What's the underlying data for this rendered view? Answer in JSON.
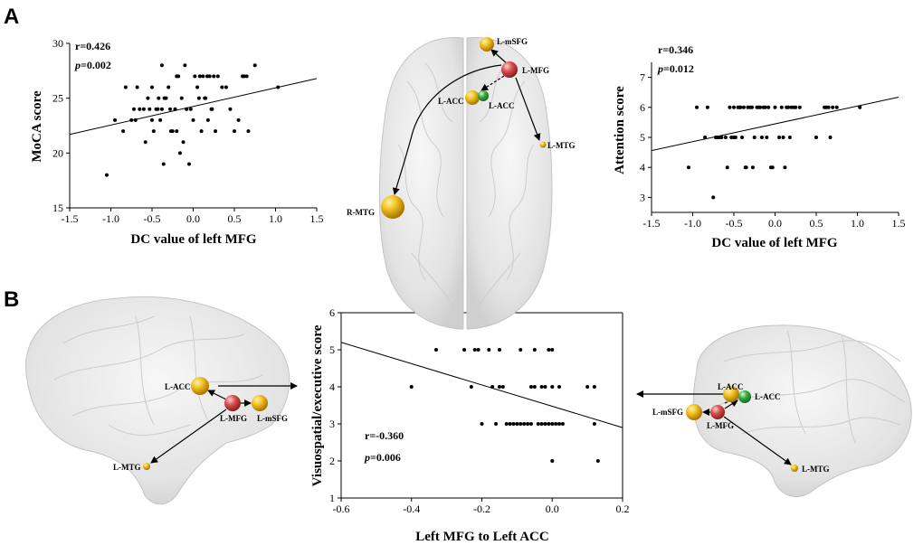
{
  "panels": {
    "a": "A",
    "b": "B"
  },
  "stats": [
    {
      "r": "r=0.426",
      "p_letter": "p",
      "p_value": "=0.002"
    },
    {
      "r": "r=0.346",
      "p_letter": "p",
      "p_value": "=0.012"
    },
    {
      "r": "r=-0.360",
      "p_letter": "p",
      "p_value": "=0.006"
    }
  ],
  "brain_labels": {
    "top": {
      "mSFG": "L-mSFG",
      "MFG": "L-MFG",
      "ACC1": "L-ACC",
      "ACC2": "L-ACC",
      "MTGr": "L-MTG",
      "RMTG": "R-MTG"
    },
    "left": {
      "ACC": "L-ACC",
      "MFG": "L-MFG",
      "mSFG": "L-mSFG",
      "MTG": "L-MTG"
    },
    "right": {
      "ACC1": "L-ACC",
      "ACC2": "L-ACC",
      "mSFG": "L-mSFG",
      "MFG": "L-MFG",
      "MTG": "L-MTG"
    }
  },
  "colors": {
    "gold": "#e8b00e",
    "red": "#d94c4c",
    "green": "#3cb043",
    "brain": "#e6e6e6"
  },
  "chart_data": [
    {
      "type": "scatter",
      "xlabel": "DC value of left MFG",
      "ylabel": "MoCA score",
      "xlim": [
        -1.5,
        1.5
      ],
      "ylim": [
        15,
        30
      ],
      "xticks": [
        "-1.5",
        "-1.0",
        "-0.5",
        "0.0",
        "0.5",
        "1.0",
        "1.5"
      ],
      "yticks": [
        "15",
        "20",
        "25",
        "30"
      ],
      "fit": {
        "x": [
          -1.5,
          1.5
        ],
        "y": [
          21.7,
          26.8
        ]
      },
      "points": [
        [
          -1.05,
          18
        ],
        [
          -0.95,
          23
        ],
        [
          -0.85,
          22
        ],
        [
          -0.82,
          26
        ],
        [
          -0.75,
          23
        ],
        [
          -0.72,
          24
        ],
        [
          -0.7,
          23
        ],
        [
          -0.68,
          26
        ],
        [
          -0.65,
          24
        ],
        [
          -0.6,
          24
        ],
        [
          -0.58,
          21
        ],
        [
          -0.55,
          25
        ],
        [
          -0.53,
          24
        ],
        [
          -0.5,
          23
        ],
        [
          -0.5,
          26
        ],
        [
          -0.48,
          22
        ],
        [
          -0.45,
          24
        ],
        [
          -0.43,
          24
        ],
        [
          -0.42,
          25
        ],
        [
          -0.4,
          23
        ],
        [
          -0.38,
          24
        ],
        [
          -0.38,
          28
        ],
        [
          -0.36,
          19
        ],
        [
          -0.35,
          25
        ],
        [
          -0.33,
          25
        ],
        [
          -0.3,
          26
        ],
        [
          -0.28,
          24
        ],
        [
          -0.27,
          22
        ],
        [
          -0.25,
          22
        ],
        [
          -0.22,
          24
        ],
        [
          -0.2,
          22
        ],
        [
          -0.2,
          27
        ],
        [
          -0.18,
          27
        ],
        [
          -0.16,
          20
        ],
        [
          -0.14,
          25
        ],
        [
          -0.12,
          21
        ],
        [
          -0.1,
          28
        ],
        [
          -0.08,
          24
        ],
        [
          -0.05,
          19
        ],
        [
          -0.03,
          24
        ],
        [
          0.0,
          23
        ],
        [
          0.02,
          27
        ],
        [
          0.05,
          26
        ],
        [
          0.07,
          25
        ],
        [
          0.08,
          27
        ],
        [
          0.1,
          22
        ],
        [
          0.12,
          27
        ],
        [
          0.14,
          25
        ],
        [
          0.15,
          25
        ],
        [
          0.17,
          27
        ],
        [
          0.18,
          23
        ],
        [
          0.2,
          27
        ],
        [
          0.22,
          24
        ],
        [
          0.23,
          24
        ],
        [
          0.25,
          27
        ],
        [
          0.27,
          22
        ],
        [
          0.3,
          27
        ],
        [
          0.35,
          26
        ],
        [
          0.4,
          26
        ],
        [
          0.45,
          24
        ],
        [
          0.5,
          22
        ],
        [
          0.55,
          23
        ],
        [
          0.6,
          27
        ],
        [
          0.62,
          27
        ],
        [
          0.65,
          27
        ],
        [
          0.67,
          22
        ],
        [
          0.75,
          28
        ],
        [
          1.03,
          26
        ]
      ]
    },
    {
      "type": "scatter",
      "xlabel": "DC value of left MFG",
      "ylabel": "Attention score",
      "xlim": [
        -1.5,
        1.5
      ],
      "ylim": [
        2.5,
        7.5
      ],
      "xticks": [
        "-1.5",
        "-1.0",
        "-0.5",
        "0.0",
        "0.5",
        "1.0",
        "1.5"
      ],
      "yticks": [
        "3",
        "4",
        "5",
        "6",
        "7"
      ],
      "fit": {
        "x": [
          -1.5,
          1.5
        ],
        "y": [
          4.56,
          6.34
        ]
      },
      "points": [
        [
          -1.05,
          4
        ],
        [
          -0.95,
          6
        ],
        [
          -0.85,
          5
        ],
        [
          -0.82,
          6
        ],
        [
          -0.75,
          3
        ],
        [
          -0.72,
          5
        ],
        [
          -0.7,
          5
        ],
        [
          -0.68,
          5
        ],
        [
          -0.65,
          5
        ],
        [
          -0.6,
          5
        ],
        [
          -0.58,
          4
        ],
        [
          -0.55,
          6
        ],
        [
          -0.53,
          5
        ],
        [
          -0.5,
          5
        ],
        [
          -0.5,
          6
        ],
        [
          -0.48,
          5
        ],
        [
          -0.45,
          6
        ],
        [
          -0.43,
          6
        ],
        [
          -0.42,
          6
        ],
        [
          -0.4,
          5
        ],
        [
          -0.38,
          6
        ],
        [
          -0.36,
          4
        ],
        [
          -0.35,
          4
        ],
        [
          -0.33,
          6
        ],
        [
          -0.3,
          6
        ],
        [
          -0.28,
          6
        ],
        [
          -0.27,
          4
        ],
        [
          -0.25,
          5
        ],
        [
          -0.22,
          6
        ],
        [
          -0.2,
          6
        ],
        [
          -0.18,
          6
        ],
        [
          -0.16,
          5
        ],
        [
          -0.14,
          6
        ],
        [
          -0.12,
          6
        ],
        [
          -0.1,
          5
        ],
        [
          -0.08,
          6
        ],
        [
          -0.05,
          4
        ],
        [
          -0.03,
          4
        ],
        [
          0.0,
          6
        ],
        [
          0.05,
          5
        ],
        [
          0.08,
          6
        ],
        [
          0.1,
          5
        ],
        [
          0.12,
          4
        ],
        [
          0.14,
          6
        ],
        [
          0.16,
          6
        ],
        [
          0.18,
          5
        ],
        [
          0.2,
          6
        ],
        [
          0.23,
          6
        ],
        [
          0.25,
          6
        ],
        [
          0.3,
          6
        ],
        [
          0.5,
          5
        ],
        [
          0.6,
          6
        ],
        [
          0.62,
          6
        ],
        [
          0.65,
          6
        ],
        [
          0.67,
          5
        ],
        [
          0.7,
          6
        ],
        [
          0.75,
          6
        ],
        [
          1.03,
          6
        ]
      ]
    },
    {
      "type": "scatter",
      "xlabel": "Left MFG to Left ACC",
      "ylabel": "Visuospatial/executive score",
      "xlim": [
        -0.6,
        0.2
      ],
      "ylim": [
        1,
        6
      ],
      "xticks": [
        "-0.6",
        "-0.4",
        "-0.2",
        "0.0",
        "0.2"
      ],
      "yticks": [
        "1",
        "2",
        "3",
        "4",
        "5",
        "6"
      ],
      "fit": {
        "x": [
          -0.6,
          0.2
        ],
        "y": [
          5.2,
          2.9
        ]
      },
      "points": [
        [
          -0.4,
          4
        ],
        [
          -0.33,
          5
        ],
        [
          -0.25,
          5
        ],
        [
          -0.23,
          4
        ],
        [
          -0.22,
          5
        ],
        [
          -0.21,
          5
        ],
        [
          -0.2,
          3
        ],
        [
          -0.18,
          5
        ],
        [
          -0.17,
          4
        ],
        [
          -0.16,
          3
        ],
        [
          -0.15,
          5
        ],
        [
          -0.15,
          4
        ],
        [
          -0.14,
          4
        ],
        [
          -0.13,
          3
        ],
        [
          -0.12,
          3
        ],
        [
          -0.11,
          3
        ],
        [
          -0.1,
          3
        ],
        [
          -0.09,
          5
        ],
        [
          -0.09,
          3
        ],
        [
          -0.08,
          3
        ],
        [
          -0.07,
          3
        ],
        [
          -0.06,
          3
        ],
        [
          -0.06,
          4
        ],
        [
          -0.05,
          5
        ],
        [
          -0.05,
          4
        ],
        [
          -0.04,
          3
        ],
        [
          -0.03,
          3
        ],
        [
          -0.03,
          4
        ],
        [
          -0.02,
          3
        ],
        [
          -0.02,
          4
        ],
        [
          -0.01,
          5
        ],
        [
          -0.01,
          3
        ],
        [
          0.0,
          5
        ],
        [
          0.0,
          4
        ],
        [
          0.0,
          3
        ],
        [
          0.0,
          2
        ],
        [
          0.01,
          3
        ],
        [
          0.02,
          4
        ],
        [
          0.02,
          3
        ],
        [
          0.03,
          3
        ],
        [
          0.1,
          4
        ],
        [
          0.12,
          3
        ],
        [
          0.12,
          4
        ],
        [
          0.13,
          2
        ]
      ]
    }
  ]
}
